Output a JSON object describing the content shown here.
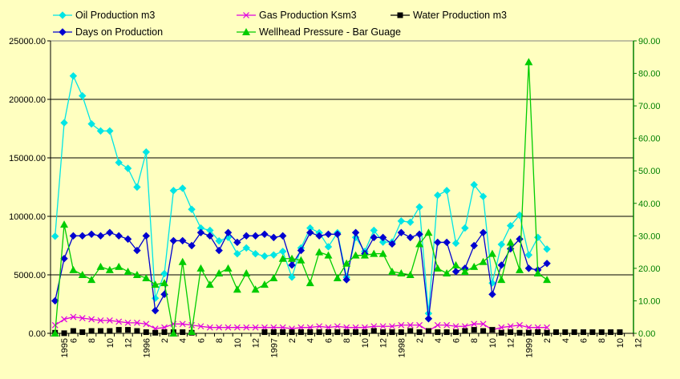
{
  "chart_data": {
    "type": "line",
    "title": "",
    "xlabel": "",
    "ylabel": "",
    "y2label": "",
    "ylim": [
      0,
      25000
    ],
    "y2lim": [
      0,
      90
    ],
    "left_ticks": [
      "0.00",
      "5000.00",
      "10000.00",
      "15000.00",
      "20000.00",
      "25000.00"
    ],
    "right_ticks": [
      "0.00",
      "10.00",
      "20.00",
      "30.00",
      "40.00",
      "50.00",
      "60.00",
      "70.00",
      "80.00",
      "90.00"
    ],
    "x_labels": [
      "1995",
      "6",
      "8",
      "10",
      "12",
      "1996",
      "2",
      "4",
      "6",
      "8",
      "10",
      "12",
      "1997",
      "2",
      "4",
      "6",
      "8",
      "10",
      "12",
      "1998",
      "2",
      "4",
      "6",
      "8",
      "10",
      "12",
      "1999",
      "2",
      "4",
      "6",
      "8",
      "10",
      "12"
    ],
    "x_label_positions": [
      1,
      2,
      4,
      6,
      8,
      10,
      12,
      14,
      16,
      18,
      20,
      22,
      24,
      26,
      28,
      30,
      32,
      34,
      36,
      38,
      40,
      42,
      44,
      46,
      48,
      50,
      52,
      54,
      56,
      58,
      60,
      62,
      64
    ],
    "x_count": 64,
    "gridlines": true,
    "legend_position": "top",
    "colors": {
      "plot_background": "#ffffc0",
      "page_background": "#ffffc0",
      "axis_right": "#008000",
      "gridline": "#000000"
    },
    "series": [
      {
        "name": "Oil Production m3",
        "axis": "left",
        "color": "#00e5e5",
        "marker": "diamond",
        "values": [
          8300,
          18000,
          22000,
          20300,
          17900,
          17300,
          17300,
          14600,
          14100,
          12500,
          15500,
          3000,
          5100,
          12200,
          12400,
          10600,
          9000,
          8800,
          7900,
          8200,
          6800,
          7300,
          6800,
          6600,
          6700,
          7000,
          4800,
          7300,
          9000,
          8600,
          7400,
          8600,
          4800,
          8200,
          7000,
          8800,
          7800,
          7800,
          9600,
          9500,
          10800,
          1700,
          11800,
          12200,
          7700,
          9000,
          12700,
          11700,
          4300,
          7600,
          9200,
          10100,
          6700,
          8200,
          7200
        ]
      },
      {
        "name": "Gas Production Ksm3",
        "axis": "left",
        "color": "#e000e0",
        "marker": "x",
        "values": [
          700,
          1200,
          1400,
          1300,
          1200,
          1100,
          1100,
          1000,
          900,
          900,
          800,
          400,
          500,
          800,
          800,
          700,
          600,
          500,
          500,
          500,
          500,
          500,
          500,
          500,
          500,
          500,
          400,
          500,
          500,
          600,
          500,
          600,
          500,
          500,
          500,
          600,
          600,
          600,
          700,
          700,
          700,
          200,
          700,
          700,
          600,
          600,
          800,
          800,
          300,
          500,
          600,
          700,
          500,
          500,
          500
        ]
      },
      {
        "name": "Water Production m3",
        "axis": "left",
        "color": "#000000",
        "marker": "square",
        "values": [
          50,
          10,
          200,
          100,
          200,
          200,
          200,
          300,
          300,
          200,
          100,
          50,
          100,
          100,
          100,
          50,
          null,
          null,
          null,
          null,
          null,
          null,
          null,
          100,
          100,
          100,
          100,
          100,
          100,
          100,
          100,
          100,
          100,
          100,
          100,
          200,
          100,
          100,
          100,
          200,
          100,
          200,
          100,
          100,
          100,
          200,
          300,
          200,
          300,
          50,
          100,
          50,
          50,
          100,
          50,
          100,
          100,
          100,
          100,
          100,
          100,
          100,
          100
        ]
      },
      {
        "name": "Days on Production",
        "axis": "right",
        "color": "#0000d0",
        "marker": "diamond",
        "values": [
          10,
          23,
          30,
          30,
          30.5,
          30,
          31,
          30,
          29,
          25.5,
          30,
          7,
          12,
          28.5,
          28.5,
          27,
          31,
          30,
          25.5,
          31,
          28,
          30,
          30,
          30.5,
          29.5,
          30,
          21,
          25.5,
          31,
          30,
          30.5,
          30.5,
          16.5,
          31,
          24.5,
          29.5,
          29.5,
          27.5,
          31,
          29.5,
          30.5,
          4.5,
          28,
          28,
          19,
          20,
          27,
          31,
          12,
          21,
          26,
          29,
          20,
          19.5,
          21.5
        ]
      },
      {
        "name": "Wellhead Pressure - Bar Guage",
        "axis": "right",
        "color": "#00cc00",
        "marker": "triangle",
        "values": [
          0,
          33.5,
          19.5,
          18,
          16.5,
          20.5,
          19.5,
          20.5,
          19,
          18,
          17,
          15,
          15.5,
          0,
          22,
          0.5,
          20,
          15,
          18.5,
          20,
          13.5,
          18.5,
          13.5,
          15,
          17,
          23,
          23,
          22.5,
          15.5,
          25,
          24,
          17,
          21.5,
          24,
          24,
          24.5,
          24.5,
          19,
          18.5,
          18,
          27.5,
          31,
          20,
          18.5,
          21,
          19,
          20.5,
          22,
          24.5,
          16.5,
          28,
          19.5,
          83.5,
          18.5,
          16.5
        ]
      }
    ]
  }
}
